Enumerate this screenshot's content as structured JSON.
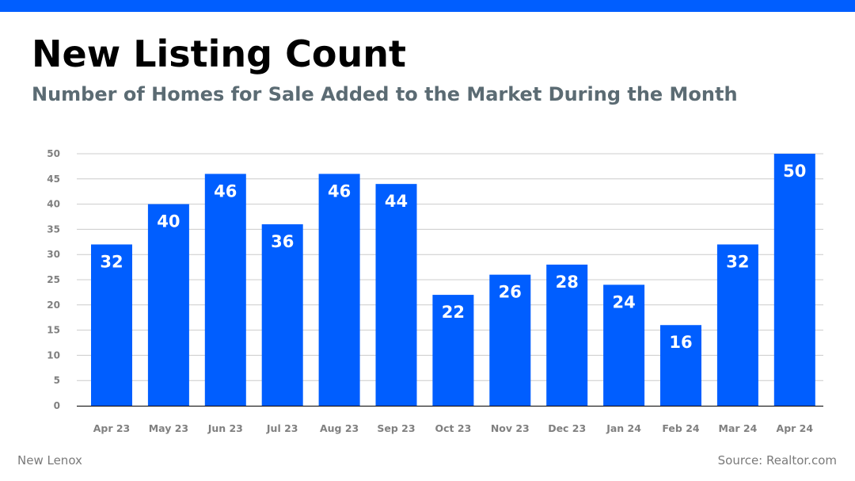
{
  "header": {
    "title": "New Listing Count",
    "subtitle": "Number of Homes for Sale Added to the Market During the Month"
  },
  "footer": {
    "location": "New Lenox",
    "source": "Source: Realtor.com"
  },
  "colors": {
    "accent": "#005eff",
    "bar": "#005eff",
    "subtitle": "#5b6b73",
    "gridline": "#cccccc",
    "tick_label": "#808080",
    "data_label": "#ffffff"
  },
  "chart_data": {
    "type": "bar",
    "title": "New Listing Count",
    "subtitle": "Number of Homes for Sale Added to the Market During the Month",
    "xlabel": "",
    "ylabel": "",
    "categories": [
      "Apr 23",
      "May 23",
      "Jun 23",
      "Jul 23",
      "Aug 23",
      "Sep 23",
      "Oct 23",
      "Nov 23",
      "Dec 23",
      "Jan 24",
      "Feb 24",
      "Mar 24",
      "Apr 24"
    ],
    "values": [
      32,
      40,
      46,
      36,
      46,
      44,
      22,
      26,
      28,
      24,
      16,
      32,
      50
    ],
    "ylim": [
      0,
      50
    ],
    "yticks": [
      0,
      5,
      10,
      15,
      20,
      25,
      30,
      35,
      40,
      45,
      50
    ],
    "grid": true,
    "legend": "none",
    "data_labels": true
  }
}
